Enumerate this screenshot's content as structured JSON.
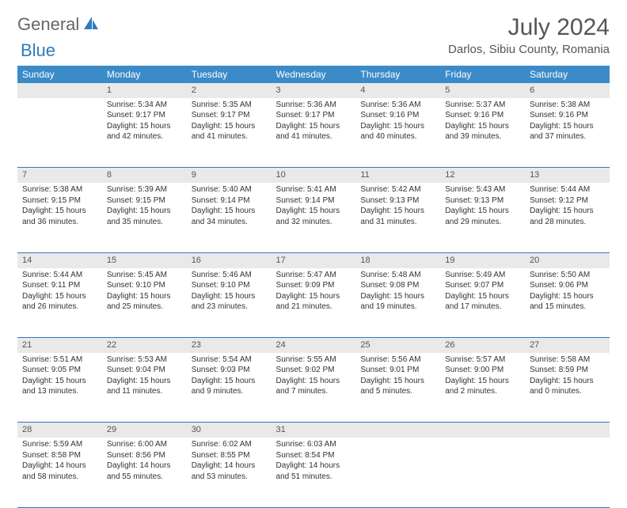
{
  "brand": {
    "general": "General",
    "blue": "Blue"
  },
  "title": "July 2024",
  "location": "Darlos, Sibiu County, Romania",
  "header_bg": "#3b8bc9",
  "weekdays": [
    "Sunday",
    "Monday",
    "Tuesday",
    "Wednesday",
    "Thursday",
    "Friday",
    "Saturday"
  ],
  "start_offset": 1,
  "days": [
    {
      "n": 1,
      "sr": "5:34 AM",
      "ss": "9:17 PM",
      "dl": "15 hours and 42 minutes."
    },
    {
      "n": 2,
      "sr": "5:35 AM",
      "ss": "9:17 PM",
      "dl": "15 hours and 41 minutes."
    },
    {
      "n": 3,
      "sr": "5:36 AM",
      "ss": "9:17 PM",
      "dl": "15 hours and 41 minutes."
    },
    {
      "n": 4,
      "sr": "5:36 AM",
      "ss": "9:16 PM",
      "dl": "15 hours and 40 minutes."
    },
    {
      "n": 5,
      "sr": "5:37 AM",
      "ss": "9:16 PM",
      "dl": "15 hours and 39 minutes."
    },
    {
      "n": 6,
      "sr": "5:38 AM",
      "ss": "9:16 PM",
      "dl": "15 hours and 37 minutes."
    },
    {
      "n": 7,
      "sr": "5:38 AM",
      "ss": "9:15 PM",
      "dl": "15 hours and 36 minutes."
    },
    {
      "n": 8,
      "sr": "5:39 AM",
      "ss": "9:15 PM",
      "dl": "15 hours and 35 minutes."
    },
    {
      "n": 9,
      "sr": "5:40 AM",
      "ss": "9:14 PM",
      "dl": "15 hours and 34 minutes."
    },
    {
      "n": 10,
      "sr": "5:41 AM",
      "ss": "9:14 PM",
      "dl": "15 hours and 32 minutes."
    },
    {
      "n": 11,
      "sr": "5:42 AM",
      "ss": "9:13 PM",
      "dl": "15 hours and 31 minutes."
    },
    {
      "n": 12,
      "sr": "5:43 AM",
      "ss": "9:13 PM",
      "dl": "15 hours and 29 minutes."
    },
    {
      "n": 13,
      "sr": "5:44 AM",
      "ss": "9:12 PM",
      "dl": "15 hours and 28 minutes."
    },
    {
      "n": 14,
      "sr": "5:44 AM",
      "ss": "9:11 PM",
      "dl": "15 hours and 26 minutes."
    },
    {
      "n": 15,
      "sr": "5:45 AM",
      "ss": "9:10 PM",
      "dl": "15 hours and 25 minutes."
    },
    {
      "n": 16,
      "sr": "5:46 AM",
      "ss": "9:10 PM",
      "dl": "15 hours and 23 minutes."
    },
    {
      "n": 17,
      "sr": "5:47 AM",
      "ss": "9:09 PM",
      "dl": "15 hours and 21 minutes."
    },
    {
      "n": 18,
      "sr": "5:48 AM",
      "ss": "9:08 PM",
      "dl": "15 hours and 19 minutes."
    },
    {
      "n": 19,
      "sr": "5:49 AM",
      "ss": "9:07 PM",
      "dl": "15 hours and 17 minutes."
    },
    {
      "n": 20,
      "sr": "5:50 AM",
      "ss": "9:06 PM",
      "dl": "15 hours and 15 minutes."
    },
    {
      "n": 21,
      "sr": "5:51 AM",
      "ss": "9:05 PM",
      "dl": "15 hours and 13 minutes."
    },
    {
      "n": 22,
      "sr": "5:53 AM",
      "ss": "9:04 PM",
      "dl": "15 hours and 11 minutes."
    },
    {
      "n": 23,
      "sr": "5:54 AM",
      "ss": "9:03 PM",
      "dl": "15 hours and 9 minutes."
    },
    {
      "n": 24,
      "sr": "5:55 AM",
      "ss": "9:02 PM",
      "dl": "15 hours and 7 minutes."
    },
    {
      "n": 25,
      "sr": "5:56 AM",
      "ss": "9:01 PM",
      "dl": "15 hours and 5 minutes."
    },
    {
      "n": 26,
      "sr": "5:57 AM",
      "ss": "9:00 PM",
      "dl": "15 hours and 2 minutes."
    },
    {
      "n": 27,
      "sr": "5:58 AM",
      "ss": "8:59 PM",
      "dl": "15 hours and 0 minutes."
    },
    {
      "n": 28,
      "sr": "5:59 AM",
      "ss": "8:58 PM",
      "dl": "14 hours and 58 minutes."
    },
    {
      "n": 29,
      "sr": "6:00 AM",
      "ss": "8:56 PM",
      "dl": "14 hours and 55 minutes."
    },
    {
      "n": 30,
      "sr": "6:02 AM",
      "ss": "8:55 PM",
      "dl": "14 hours and 53 minutes."
    },
    {
      "n": 31,
      "sr": "6:03 AM",
      "ss": "8:54 PM",
      "dl": "14 hours and 51 minutes."
    }
  ],
  "labels": {
    "sunrise": "Sunrise:",
    "sunset": "Sunset:",
    "daylight": "Daylight:"
  }
}
